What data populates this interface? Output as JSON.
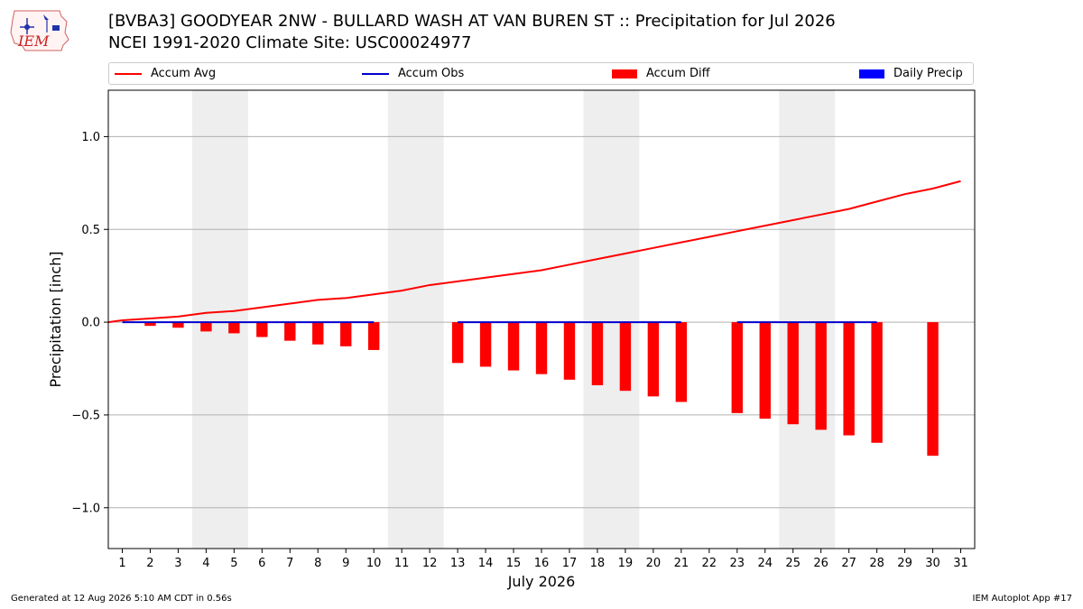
{
  "header": {
    "logo_text": "IEM",
    "title_line1": "[BVBA3] GOODYEAR 2NW - BULLARD WASH AT VAN BUREN ST :: Precipitation for Jul 2026",
    "title_line2": "NCEI 1991-2020 Climate Site: USC00024977"
  },
  "legend": {
    "items": [
      {
        "label": "Accum Avg",
        "kind": "line",
        "color": "#ff0000"
      },
      {
        "label": "Accum Obs",
        "kind": "line",
        "color": "#0000cc"
      },
      {
        "label": "Accum Diff",
        "kind": "box",
        "color": "#ff0000"
      },
      {
        "label": "Daily Precip",
        "kind": "box",
        "color": "#0000ff"
      }
    ]
  },
  "footer": {
    "generated": "Generated at 12 Aug 2026 5:10 AM CDT in 0.56s",
    "app": "IEM Autoplot App #17"
  },
  "chart_data": {
    "type": "bar",
    "xlabel": "July 2026",
    "ylabel": "Precipitation [inch]",
    "xlim": [
      0.5,
      31.5
    ],
    "ylim": [
      -1.22,
      1.25
    ],
    "yticks": [
      -1.0,
      -0.5,
      0.0,
      0.5,
      1.0
    ],
    "ytick_labels": [
      "−1.0",
      "−0.5",
      "0.0",
      "0.5",
      "1.0"
    ],
    "xticks": [
      1,
      2,
      3,
      4,
      5,
      6,
      7,
      8,
      9,
      10,
      11,
      12,
      13,
      14,
      15,
      16,
      17,
      18,
      19,
      20,
      21,
      22,
      23,
      24,
      25,
      26,
      27,
      28,
      29,
      30,
      31
    ],
    "grid": "horizontal",
    "weekend_shading": [
      [
        3.5,
        5.5
      ],
      [
        10.5,
        12.5
      ],
      [
        17.5,
        19.5
      ],
      [
        24.5,
        26.5
      ]
    ],
    "weekend_color": "#eeeeee",
    "accum_avg": {
      "name": "Accum Avg",
      "color": "#ff0000",
      "x": [
        0.5,
        1,
        2,
        3,
        4,
        5,
        6,
        7,
        8,
        9,
        10,
        11,
        12,
        13,
        14,
        15,
        16,
        17,
        18,
        19,
        20,
        21,
        22,
        23,
        24,
        25,
        26,
        27,
        28,
        29,
        30,
        31
      ],
      "values": [
        0.0,
        0.01,
        0.02,
        0.03,
        0.05,
        0.06,
        0.08,
        0.1,
        0.12,
        0.13,
        0.15,
        0.17,
        0.2,
        0.22,
        0.24,
        0.26,
        0.28,
        0.31,
        0.34,
        0.37,
        0.4,
        0.43,
        0.46,
        0.49,
        0.52,
        0.55,
        0.58,
        0.61,
        0.65,
        0.69,
        0.72,
        0.76
      ]
    },
    "accum_obs": {
      "name": "Accum Obs",
      "color": "#0000cc",
      "segments": [
        {
          "x": [
            1,
            2,
            3,
            4,
            5,
            6,
            7,
            8,
            9,
            10
          ],
          "values": [
            0,
            0,
            0,
            0,
            0,
            0,
            0,
            0,
            0,
            0
          ]
        },
        {
          "x": [
            13,
            14,
            15,
            16,
            17,
            18,
            19,
            20,
            21
          ],
          "values": [
            0,
            0,
            0,
            0,
            0,
            0,
            0,
            0,
            0
          ]
        },
        {
          "x": [
            23,
            24,
            25,
            26,
            27,
            28
          ],
          "values": [
            0,
            0,
            0,
            0,
            0,
            0
          ]
        }
      ]
    },
    "accum_diff": {
      "name": "Accum Diff",
      "color": "#ff0000",
      "days": [
        2,
        3,
        4,
        5,
        6,
        7,
        8,
        9,
        10,
        13,
        14,
        15,
        16,
        17,
        18,
        19,
        20,
        21,
        23,
        24,
        25,
        26,
        27,
        28,
        30
      ],
      "values": [
        -0.02,
        -0.03,
        -0.05,
        -0.06,
        -0.08,
        -0.1,
        -0.12,
        -0.13,
        -0.15,
        -0.22,
        -0.24,
        -0.26,
        -0.28,
        -0.31,
        -0.34,
        -0.37,
        -0.4,
        -0.43,
        -0.49,
        -0.52,
        -0.55,
        -0.58,
        -0.61,
        -0.65,
        -0.72
      ]
    },
    "daily_precip": {
      "name": "Daily Precip",
      "color": "#0000ff",
      "days": [],
      "values": []
    }
  }
}
